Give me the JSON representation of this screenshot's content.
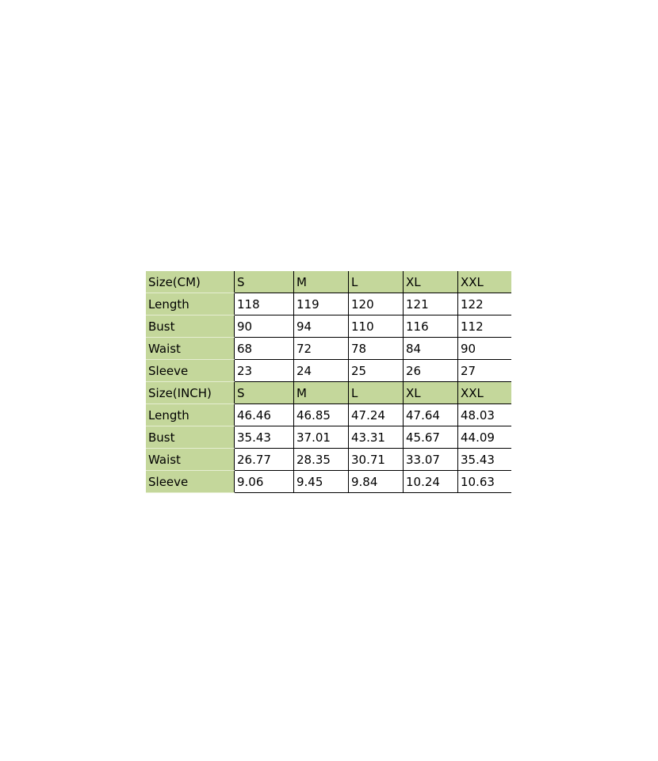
{
  "colors": {
    "header_fill": "#c4d79b",
    "border": "#000000"
  },
  "tables": [
    {
      "header": [
        "Size(CM)",
        "S",
        "M",
        "L",
        "XL",
        "XXL"
      ],
      "rows": [
        [
          "Length",
          "118",
          "119",
          "120",
          "121",
          "122"
        ],
        [
          "Bust",
          "90",
          "94",
          "110",
          "116",
          "112"
        ],
        [
          "Waist",
          "68",
          "72",
          "78",
          "84",
          "90"
        ],
        [
          "Sleeve",
          "23",
          "24",
          "25",
          "26",
          "27"
        ]
      ]
    },
    {
      "header": [
        "Size(INCH)",
        "S",
        "M",
        "L",
        "XL",
        "XXL"
      ],
      "rows": [
        [
          "Length",
          "46.46",
          "46.85",
          "47.24",
          "47.64",
          "48.03"
        ],
        [
          "Bust",
          "35.43",
          "37.01",
          "43.31",
          "45.67",
          "44.09"
        ],
        [
          "Waist",
          "26.77",
          "28.35",
          "30.71",
          "33.07",
          "35.43"
        ],
        [
          "Sleeve",
          "9.06",
          "9.45",
          "9.84",
          "10.24",
          "10.63"
        ]
      ]
    }
  ]
}
